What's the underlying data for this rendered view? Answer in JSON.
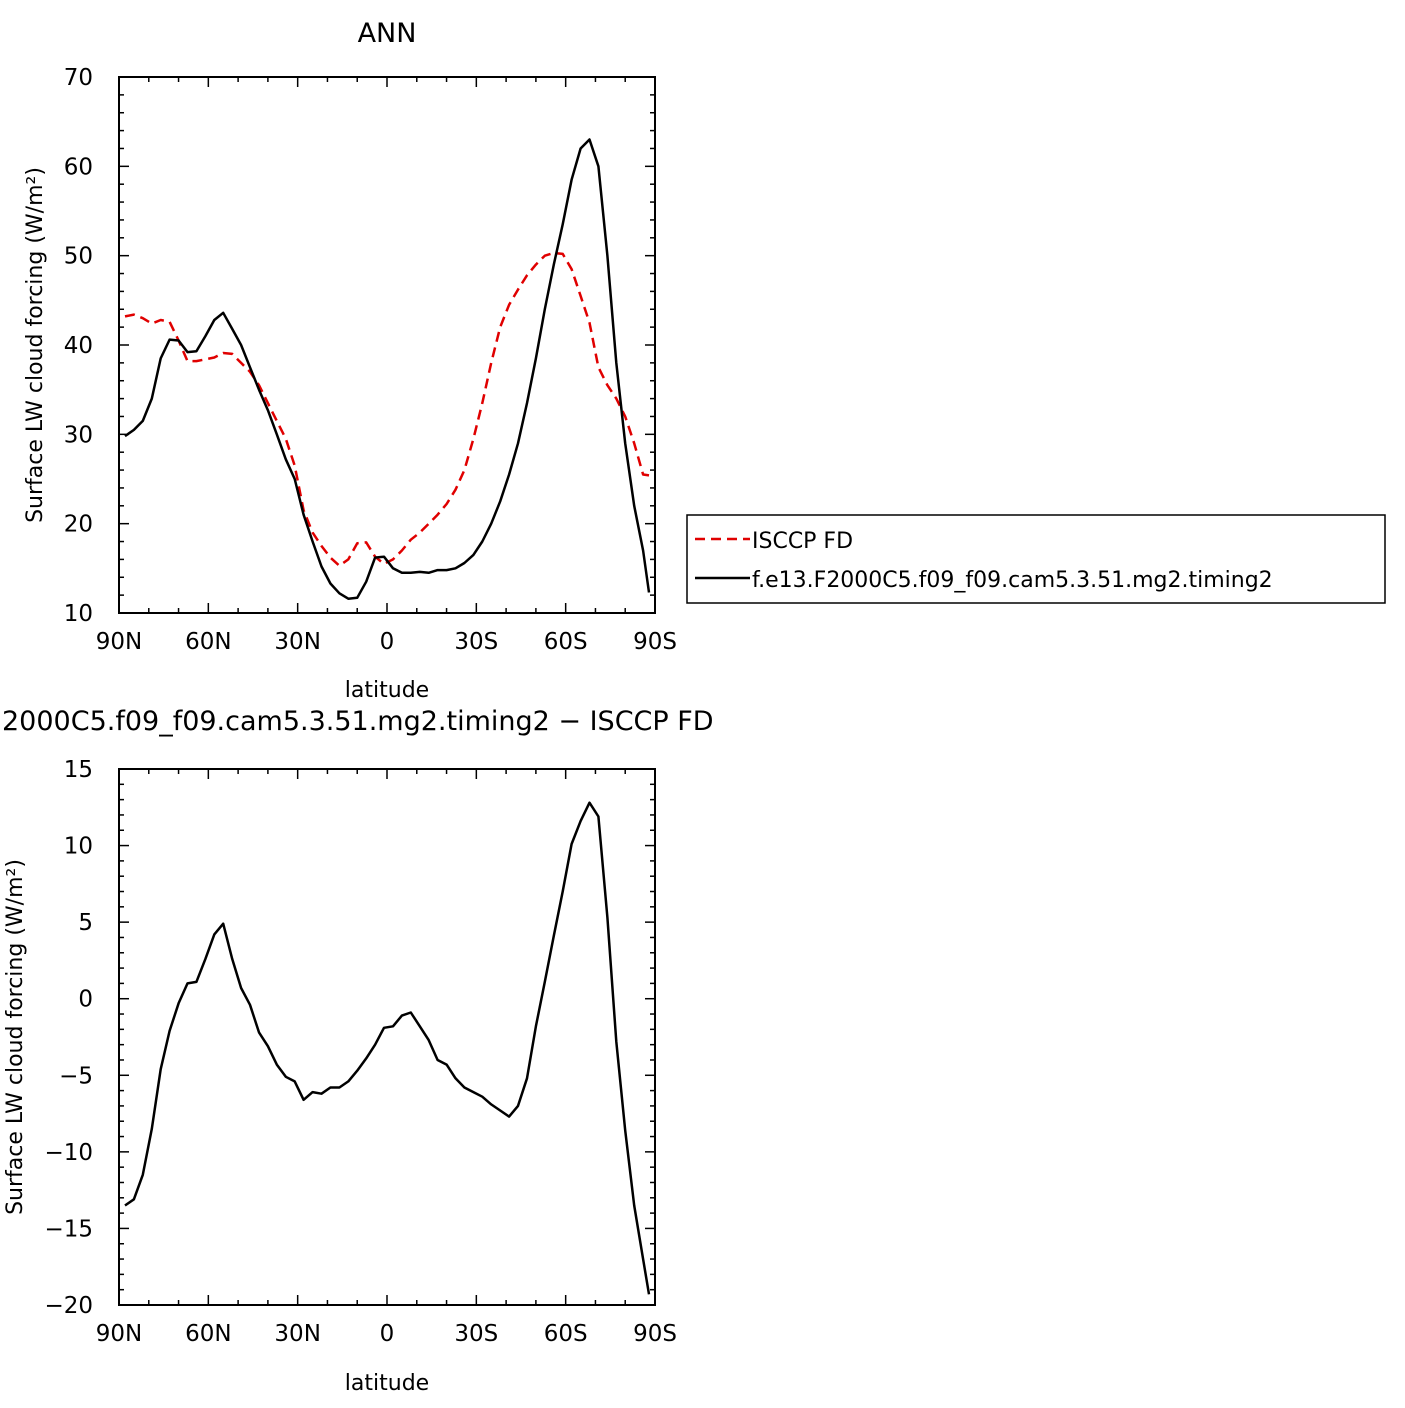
{
  "chart_data": [
    {
      "type": "line",
      "title": "ANN",
      "xlabel": "latitude",
      "ylabel": "Surface LW cloud forcing (W/m²)",
      "xlim": [
        90,
        -90
      ],
      "ylim": [
        10,
        70
      ],
      "xticks": [
        90,
        60,
        30,
        0,
        -30,
        -60,
        -90
      ],
      "xtick_labels": [
        "90N",
        "60N",
        "30N",
        "0",
        "30S",
        "60S",
        "90S"
      ],
      "yticks": [
        10,
        20,
        30,
        40,
        50,
        60,
        70
      ],
      "ytick_labels": [
        "10",
        "20",
        "30",
        "40",
        "50",
        "60",
        "70"
      ],
      "legend_position": "right",
      "series": [
        {
          "name": "ISCCP FD",
          "color": "#e00000",
          "dash": "dashed",
          "x": [
            88,
            85,
            82,
            79,
            76,
            73,
            70,
            67,
            64,
            61,
            58,
            55,
            52,
            49,
            46,
            43,
            40,
            37,
            34,
            31,
            28,
            25,
            22,
            19,
            16,
            13,
            10,
            7,
            4,
            1,
            -2,
            -5,
            -8,
            -11,
            -14,
            -17,
            -20,
            -23,
            -26,
            -29,
            -32,
            -35,
            -38,
            -41,
            -44,
            -47,
            -50,
            -53,
            -56,
            -59,
            -62,
            -65,
            -68,
            -71,
            -74,
            -77,
            -80,
            -83,
            -86,
            -88
          ],
          "y": [
            43.2,
            43.4,
            43.0,
            42.4,
            42.8,
            42.6,
            40.5,
            38.2,
            38.2,
            38.4,
            38.6,
            39.1,
            39.0,
            38.0,
            37.0,
            35.5,
            33.5,
            31.5,
            29.5,
            26.5,
            21.5,
            19.0,
            17.5,
            16.2,
            15.3,
            16.0,
            17.8,
            17.9,
            16.3,
            15.5,
            16.0,
            17.0,
            18.2,
            19.0,
            20.0,
            21.0,
            22.2,
            23.8,
            26.0,
            29.5,
            33.5,
            38.0,
            42.0,
            44.5,
            46.2,
            47.8,
            49.0,
            50.0,
            50.3,
            50.2,
            48.5,
            45.5,
            42.5,
            37.5,
            35.5,
            34.0,
            32.0,
            29.0,
            25.5,
            25.4
          ]
        },
        {
          "name": "f.e13.F2000C5.f09_f09.cam5.3.51.mg2.timing2",
          "color": "#000000",
          "dash": "solid",
          "x": [
            88,
            85,
            82,
            79,
            76,
            73,
            70,
            67,
            64,
            61,
            58,
            55,
            52,
            49,
            46,
            43,
            40,
            37,
            34,
            31,
            28,
            25,
            22,
            19,
            16,
            13,
            10,
            7,
            4,
            1,
            -2,
            -5,
            -8,
            -11,
            -14,
            -17,
            -20,
            -23,
            -26,
            -29,
            -32,
            -35,
            -38,
            -41,
            -44,
            -47,
            -50,
            -53,
            -56,
            -59,
            -62,
            -65,
            -68,
            -71,
            -74,
            -77,
            -80,
            -83,
            -86,
            -88
          ],
          "y": [
            29.8,
            30.5,
            31.5,
            34.0,
            38.5,
            40.6,
            40.5,
            39.2,
            39.3,
            41.0,
            42.8,
            43.6,
            41.8,
            40.0,
            37.5,
            35.0,
            32.7,
            30.0,
            27.2,
            25.0,
            21.0,
            18.0,
            15.2,
            13.3,
            12.2,
            11.6,
            11.7,
            13.5,
            16.2,
            16.3,
            15.0,
            14.5,
            14.5,
            14.6,
            14.5,
            14.8,
            14.8,
            15.0,
            15.6,
            16.5,
            18.0,
            20.0,
            22.5,
            25.5,
            29.0,
            33.5,
            38.5,
            44.0,
            49.0,
            53.5,
            58.5,
            62.0,
            63.0,
            60.0,
            50.0,
            38.0,
            29.0,
            22.0,
            17.0,
            12.3
          ]
        }
      ]
    },
    {
      "type": "line",
      "title": "2000C5.f09_f09.cam5.3.51.mg2.timing2 − ISCCP FD",
      "xlabel": "latitude",
      "ylabel": "Surface LW cloud forcing (W/m²)",
      "xlim": [
        90,
        -90
      ],
      "ylim": [
        -20,
        15
      ],
      "xticks": [
        90,
        60,
        30,
        0,
        -30,
        -60,
        -90
      ],
      "xtick_labels": [
        "90N",
        "60N",
        "30N",
        "0",
        "30S",
        "60S",
        "90S"
      ],
      "yticks": [
        -20,
        -15,
        -10,
        -5,
        0,
        5,
        10,
        15
      ],
      "ytick_labels": [
        "−20",
        "−15",
        "−10",
        "−5",
        "0",
        "5",
        "10",
        "15"
      ],
      "series": [
        {
          "color": "#000000",
          "dash": "solid",
          "x": [
            88,
            85,
            82,
            79,
            76,
            73,
            70,
            67,
            64,
            61,
            58,
            55,
            52,
            49,
            46,
            43,
            40,
            37,
            34,
            31,
            28,
            25,
            22,
            19,
            16,
            13,
            10,
            7,
            4,
            1,
            -2,
            -5,
            -8,
            -11,
            -14,
            -17,
            -20,
            -23,
            -26,
            -29,
            -32,
            -35,
            -38,
            -41,
            -44,
            -47,
            -50,
            -53,
            -56,
            -59,
            -62,
            -65,
            -68,
            -71,
            -74,
            -77,
            -80,
            -83,
            -86,
            -88
          ],
          "y": [
            -13.5,
            -13.1,
            -11.5,
            -8.5,
            -4.6,
            -2.1,
            -0.3,
            1.0,
            1.1,
            2.6,
            4.2,
            4.9,
            2.6,
            0.7,
            -0.4,
            -2.2,
            -3.1,
            -4.3,
            -5.1,
            -5.4,
            -6.6,
            -6.1,
            -6.2,
            -5.8,
            -5.8,
            -5.4,
            -4.7,
            -3.9,
            -3.0,
            -1.9,
            -1.8,
            -1.1,
            -0.9,
            -1.8,
            -2.7,
            -4.0,
            -4.3,
            -5.2,
            -5.8,
            -6.1,
            -6.4,
            -6.9,
            -7.3,
            -7.7,
            -7.0,
            -5.2,
            -1.8,
            1.1,
            4.1,
            7.0,
            10.1,
            11.6,
            12.8,
            11.9,
            5.3,
            -2.8,
            -8.6,
            -13.5,
            -17.0,
            -19.3
          ]
        }
      ]
    }
  ],
  "legend": {
    "items": [
      {
        "label": "ISCCP FD",
        "color": "#e00000",
        "dash": "dashed"
      },
      {
        "label": "f.e13.F2000C5.f09_f09.cam5.3.51.mg2.timing2",
        "color": "#000000",
        "dash": "solid"
      }
    ]
  }
}
